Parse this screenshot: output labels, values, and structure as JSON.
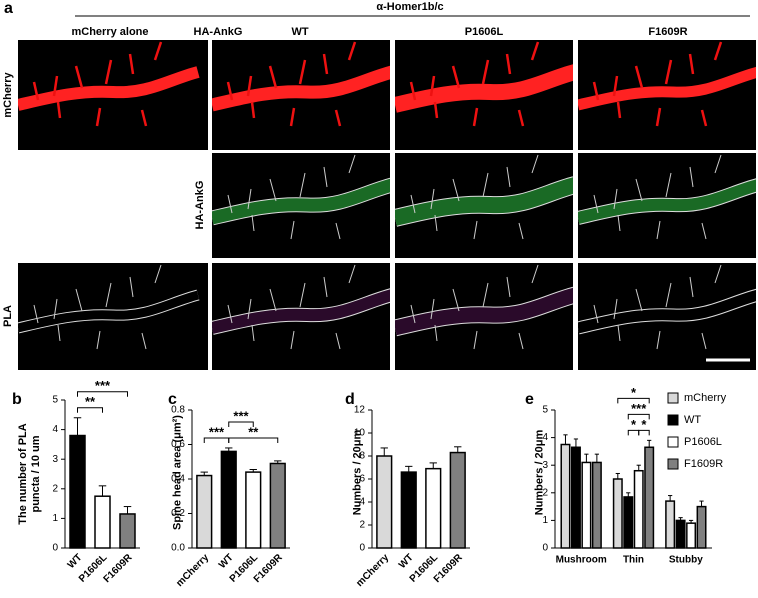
{
  "panel_a": {
    "label": "a",
    "title": "α-Homer1b/c",
    "columns": [
      "mCherry alone",
      "HA-AnkG",
      "WT",
      "P1606L",
      "F1609R"
    ],
    "rows": [
      "mCherry",
      "HA-AnkG",
      "PLA"
    ]
  },
  "chart_data": [
    {
      "type": "bar",
      "panel_label": "b",
      "ylabel": "The number of PLA puncta / 10 um",
      "categories": [
        "WT",
        "P1606L",
        "F1609R"
      ],
      "values": [
        3.8,
        1.75,
        1.15
      ],
      "errors": [
        0.6,
        0.35,
        0.25
      ],
      "colors": [
        "#000000",
        "#ffffff",
        "#808080"
      ],
      "ylim": [
        0,
        5
      ],
      "yticks": [
        0,
        1,
        2,
        3,
        4,
        5
      ],
      "annotations": [
        {
          "text": "**",
          "between": [
            "WT",
            "P1606L"
          ]
        },
        {
          "text": "***",
          "between": [
            "WT",
            "F1609R"
          ]
        }
      ]
    },
    {
      "type": "bar",
      "panel_label": "c",
      "ylabel": "Spine head area (μm²)",
      "categories": [
        "mCherry",
        "WT",
        "P1606L",
        "F1609R"
      ],
      "values": [
        0.42,
        0.56,
        0.44,
        0.49
      ],
      "errors": [
        0.02,
        0.02,
        0.015,
        0.015
      ],
      "colors": [
        "#d9d9d9",
        "#000000",
        "#ffffff",
        "#808080"
      ],
      "ylim": [
        0,
        0.8
      ],
      "yticks": [
        {
          "value": 0,
          "label": "0.0"
        },
        0.2,
        0.4,
        0.6,
        0.8
      ],
      "annotations": [
        {
          "text": "***",
          "between": [
            "mCherry",
            "WT"
          ]
        },
        {
          "text": "**",
          "between": [
            "WT",
            "F1609R"
          ]
        },
        {
          "text": "***",
          "between": [
            "WT",
            "P1606L"
          ]
        }
      ]
    },
    {
      "type": "bar",
      "panel_label": "d",
      "ylabel": "Numbers / 20μm",
      "categories": [
        "mCherry",
        "WT",
        "P1606L",
        "F1609R"
      ],
      "values": [
        8.0,
        6.6,
        6.9,
        8.3
      ],
      "errors": [
        0.7,
        0.5,
        0.5,
        0.5
      ],
      "colors": [
        "#d9d9d9",
        "#000000",
        "#ffffff",
        "#808080"
      ],
      "ylim": [
        0,
        12
      ],
      "yticks": [
        0,
        2,
        4,
        6,
        8,
        10,
        12
      ],
      "annotations": []
    },
    {
      "type": "grouped_bar",
      "panel_label": "e",
      "ylabel": "Numbers / 20μm",
      "categories": [
        "Mushroom",
        "Thin",
        "Stubby"
      ],
      "series": [
        {
          "name": "mCherry",
          "color": "#d9d9d9",
          "values": [
            3.75,
            2.5,
            1.7
          ],
          "errors": [
            0.35,
            0.2,
            0.2
          ]
        },
        {
          "name": "WT",
          "color": "#000000",
          "values": [
            3.65,
            1.85,
            1.0
          ],
          "errors": [
            0.3,
            0.15,
            0.1
          ]
        },
        {
          "name": "P1606L",
          "color": "#ffffff",
          "values": [
            3.1,
            2.8,
            0.9
          ],
          "errors": [
            0.3,
            0.2,
            0.1
          ]
        },
        {
          "name": "F1609R",
          "color": "#808080",
          "values": [
            3.1,
            3.65,
            1.5
          ],
          "errors": [
            0.3,
            0.25,
            0.2
          ]
        }
      ],
      "ylim": [
        0,
        5
      ],
      "yticks": [
        0,
        1,
        2,
        3,
        4,
        5
      ],
      "legend": "right",
      "annotations": [
        {
          "text": "*",
          "group": "Thin",
          "between": [
            "WT",
            "P1606L"
          ]
        },
        {
          "text": "*",
          "group": "Thin",
          "between": [
            "P1606L",
            "F1609R"
          ]
        },
        {
          "text": "***",
          "group": "Thin",
          "between": [
            "WT",
            "F1609R"
          ]
        },
        {
          "text": "*",
          "group": "Thin",
          "between": [
            "mCherry",
            "F1609R"
          ]
        }
      ]
    }
  ]
}
